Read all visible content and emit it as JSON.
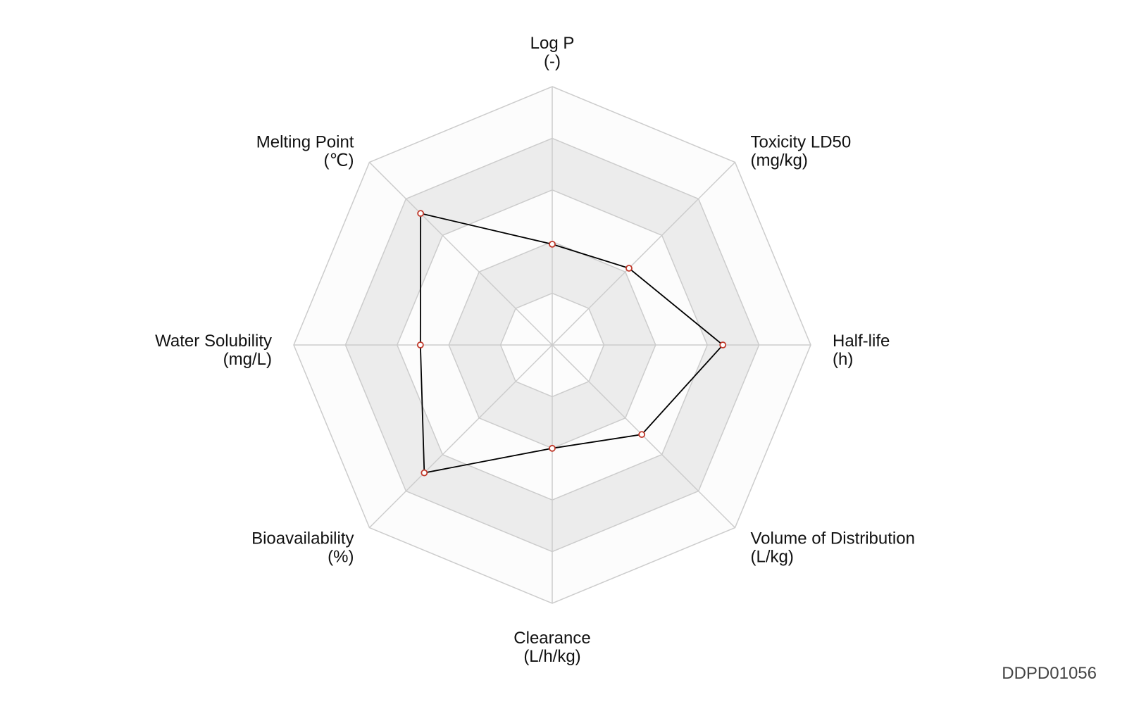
{
  "chart_data": {
    "type": "radar",
    "categories": [
      "Log P",
      "Toxicity LD50",
      "Half-life",
      "Volume of Distribution",
      "Clearance",
      "Bioavailability",
      "Water Solubility",
      "Melting Point"
    ],
    "units": [
      "(-)",
      "(mg/kg)",
      "(h)",
      "(L/kg)",
      "(L/h/kg)",
      "(%)",
      "(mg/L)",
      "(℃)"
    ],
    "values": [
      39,
      42,
      66,
      49,
      40,
      70,
      51,
      72
    ],
    "ylim": [
      0,
      100
    ],
    "yticks": [
      20,
      40,
      60,
      80,
      100
    ],
    "line_color": "#000000",
    "marker_color": "#c0392b",
    "band_colors": [
      "#fcfcfc",
      "#ececec"
    ],
    "watermark": "DDPD01056"
  }
}
